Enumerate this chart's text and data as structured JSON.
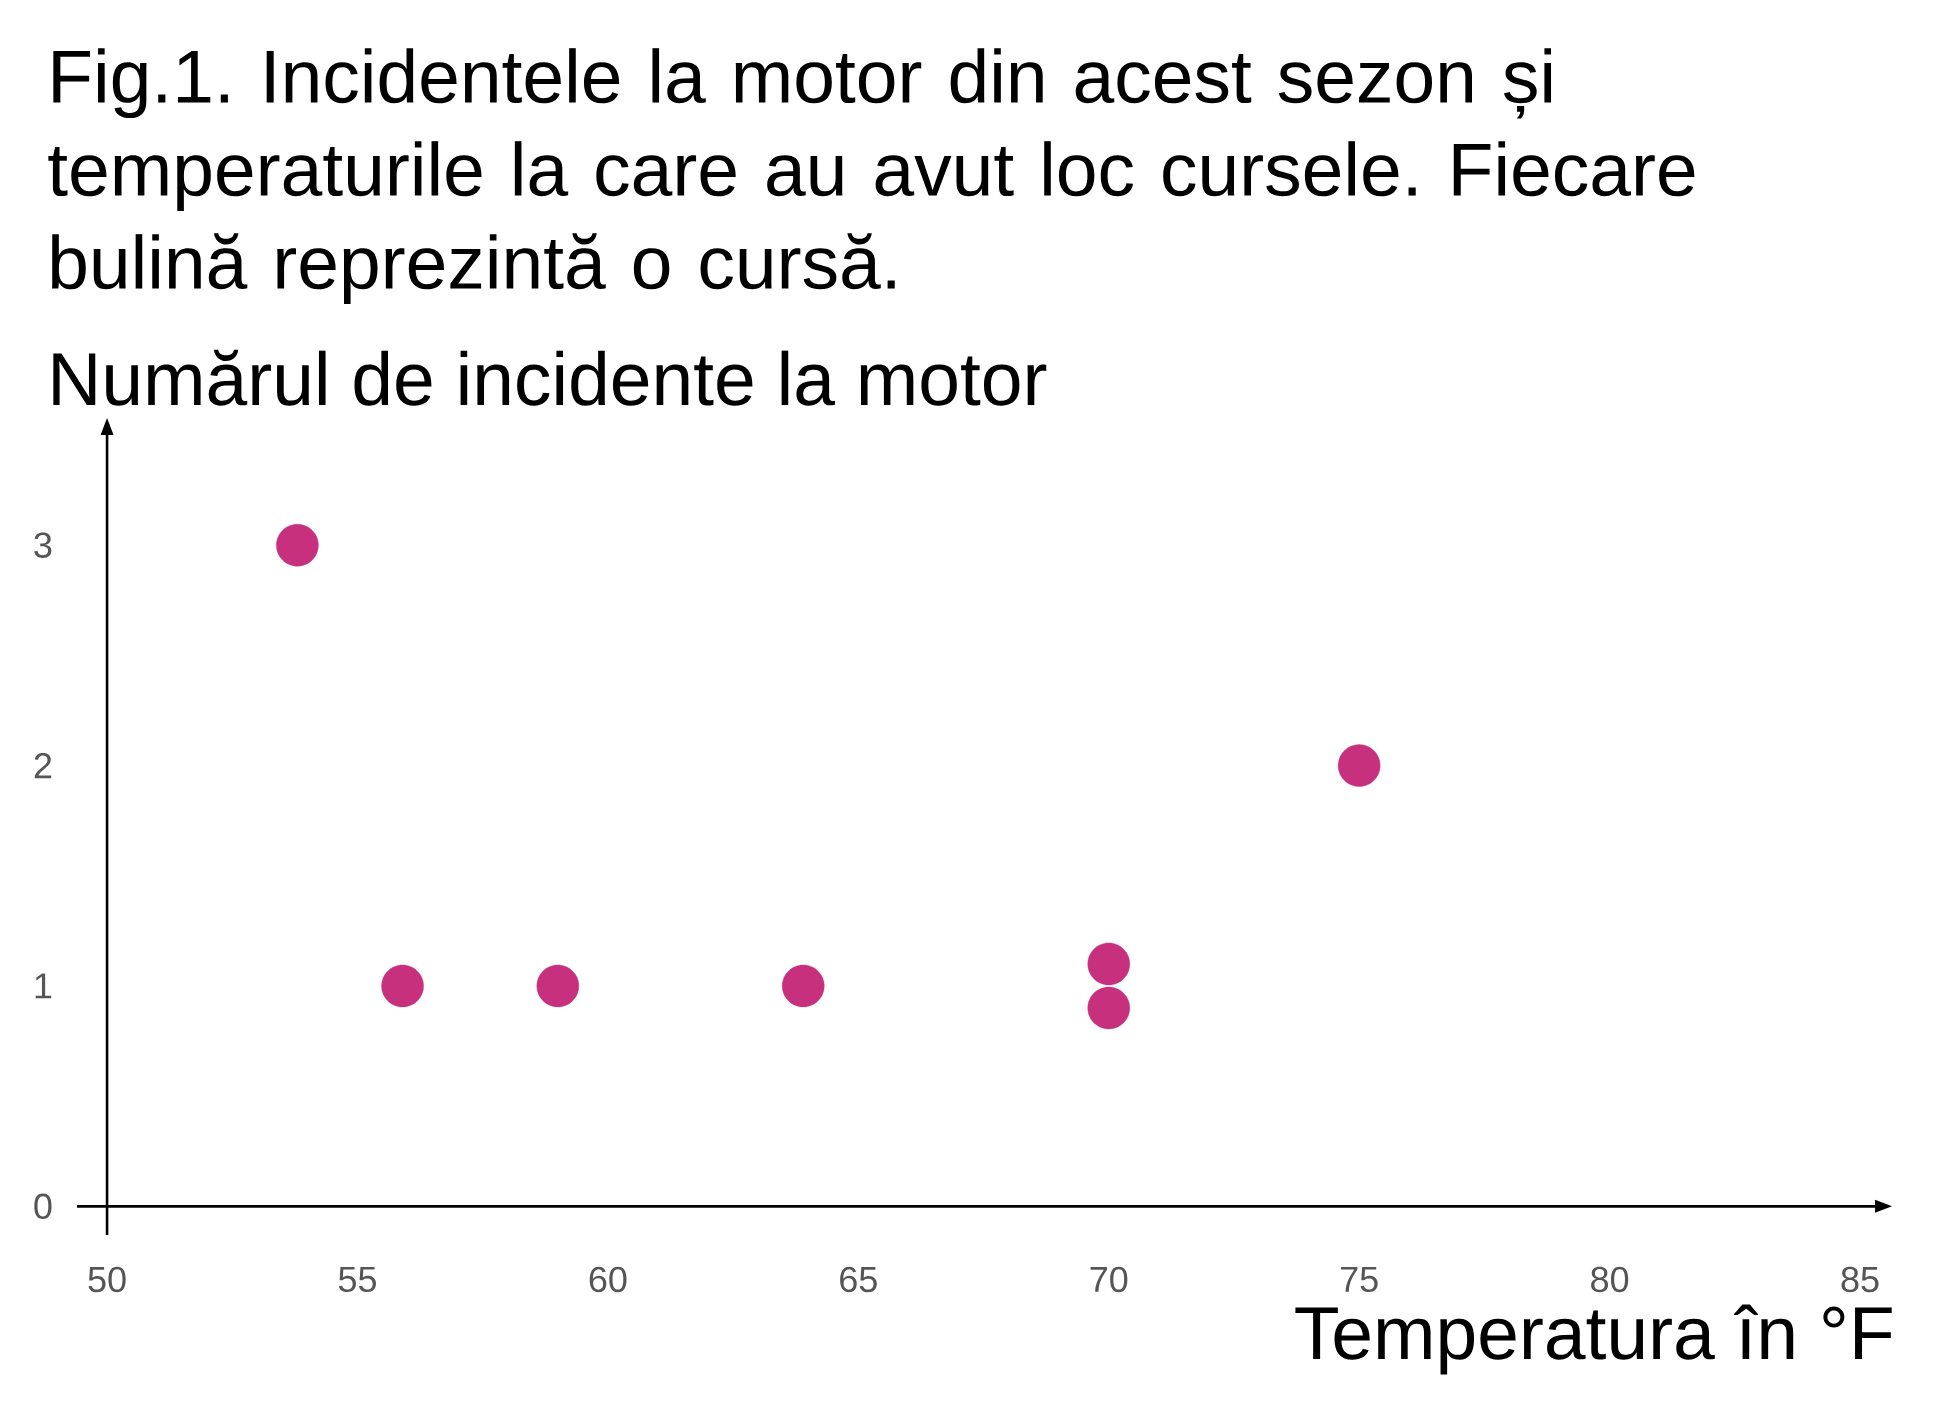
{
  "chart_data": {
    "type": "scatter",
    "title": "Fig.1. Incidentele la motor din acest sezon și temperaturile la care au avut loc cursele. Fiecare bulină reprezintă o cursă.",
    "xlabel": "Temperatura în °F",
    "ylabel": "Numărul de incidente la motor",
    "x": [
      53.8,
      55.9,
      59,
      63.9,
      70,
      70,
      75
    ],
    "values": [
      3,
      1,
      1,
      1,
      1.1,
      0.9,
      2
    ],
    "color": "#c6307c",
    "marker": "circle",
    "xlim": [
      49.4,
      85.3
    ],
    "ylim": [
      -0.13,
      3.5
    ],
    "xticks": [
      50,
      55,
      60,
      65,
      70,
      75,
      80,
      85
    ],
    "yticks": [
      0,
      1,
      2,
      3
    ]
  }
}
